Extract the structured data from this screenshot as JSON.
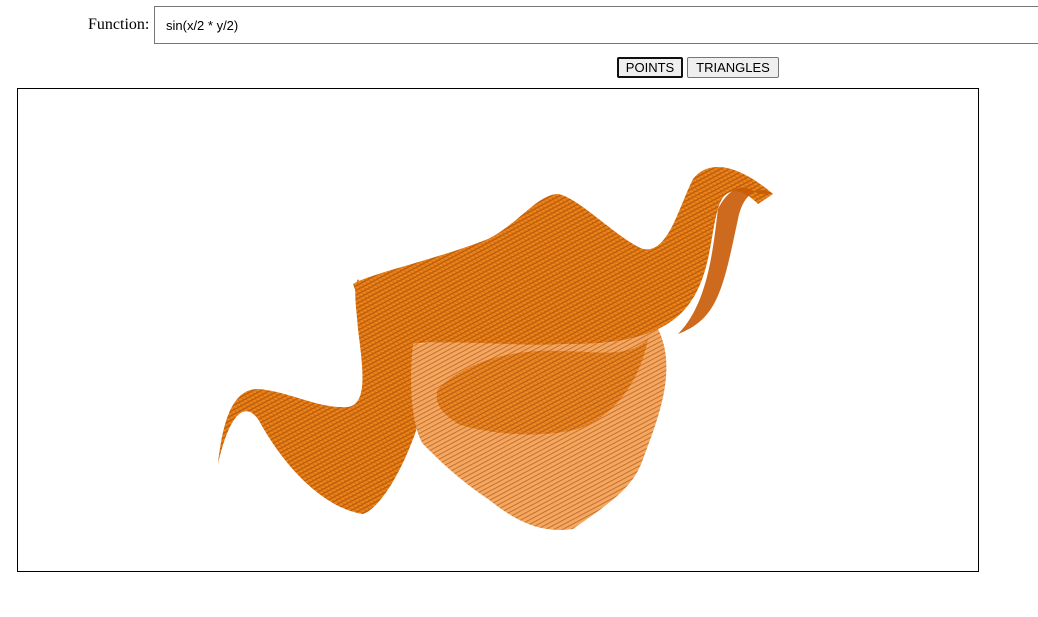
{
  "function": {
    "label": "Function:",
    "value": "sin(x/2 * y/2)"
  },
  "modes": {
    "points_label": "POINTS",
    "triangles_label": "TRIANGLES",
    "active": "POINTS"
  },
  "plot": {
    "surface_color": "#e8730a",
    "highlight_color": "#ff9a2e",
    "shadow_color": "#8a3f05"
  }
}
